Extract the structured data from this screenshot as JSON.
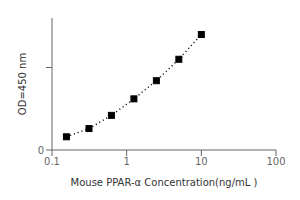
{
  "chart_data": {
    "type": "line",
    "x": [
      0.156,
      0.313,
      0.625,
      1.25,
      2.5,
      5.0,
      10.0
    ],
    "values": [
      0.08,
      0.13,
      0.21,
      0.31,
      0.42,
      0.55,
      0.7
    ],
    "xlabel": "Mouse PPAR-α  Concentration(ng/mL )",
    "ylabel": "OD=450 nm",
    "log": "x",
    "xlim": [
      0.1,
      100
    ],
    "ylim": [
      0,
      0.8
    ],
    "xticks": [
      0.1,
      1,
      10,
      100
    ],
    "yticks": [
      0,
      {
        "value": 0.5,
        "label": ""
      }
    ],
    "color": "black",
    "marker": "square",
    "line_style": "dotted",
    "grid": false
  }
}
